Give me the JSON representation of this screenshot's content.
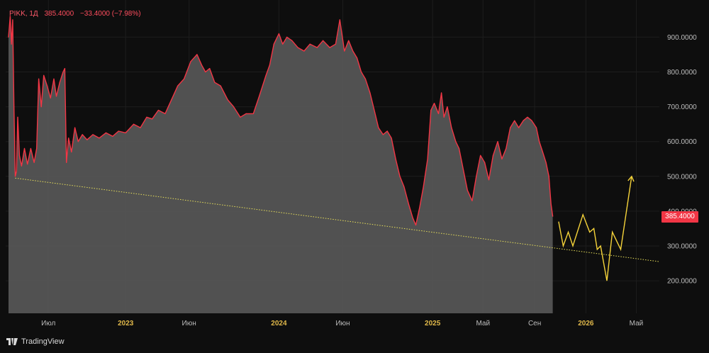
{
  "header": {
    "symbol": "PIKK, 1Д",
    "last": "385.4000",
    "change": "−33.4000 (−7.98%)"
  },
  "price_tag": "385.4000",
  "branding": {
    "name": "TradingView"
  },
  "colors": {
    "background": "#0e0e0e",
    "area_fill": "#555555",
    "line": "#f23645",
    "projection": "#f5d33a",
    "trendline": "#e8e05a",
    "axis_text": "#bdbdbd",
    "axis_text_highlight": "#e0b84a"
  },
  "chart_data": {
    "type": "area",
    "x_axis": {
      "ticks": [
        {
          "label": "Июл",
          "date": "2022-07"
        },
        {
          "label": "2023",
          "date": "2023-01",
          "highlight": true
        },
        {
          "label": "Июн",
          "date": "2023-06"
        },
        {
          "label": "2024",
          "date": "2024-01",
          "highlight": true
        },
        {
          "label": "Июн",
          "date": "2024-06"
        },
        {
          "label": "2025",
          "date": "2025-01",
          "highlight": true
        },
        {
          "label": "Май",
          "date": "2025-05"
        },
        {
          "label": "Сен",
          "date": "2025-09"
        },
        {
          "label": "2026",
          "date": "2026-01",
          "highlight": true
        },
        {
          "label": "Май",
          "date": "2026-05"
        }
      ]
    },
    "y_axis": {
      "range": [
        100,
        1000
      ],
      "ticks": [
        "200.0000",
        "300.0000",
        "400.0000",
        "500.0000",
        "600.0000",
        "700.0000",
        "800.0000",
        "900.0000"
      ],
      "position": "right"
    },
    "series": [
      {
        "points": [
          [
            "2022-03-28",
            900
          ],
          [
            "2022-04-01",
            960
          ],
          [
            "2022-04-04",
            880
          ],
          [
            "2022-04-07",
            950
          ],
          [
            "2022-04-10",
            700
          ],
          [
            "2022-04-13",
            500
          ],
          [
            "2022-04-16",
            515
          ],
          [
            "2022-04-19",
            670
          ],
          [
            "2022-04-23",
            560
          ],
          [
            "2022-04-28",
            530
          ],
          [
            "2022-05-05",
            580
          ],
          [
            "2022-05-12",
            535
          ],
          [
            "2022-05-20",
            580
          ],
          [
            "2022-05-28",
            540
          ],
          [
            "2022-06-03",
            580
          ],
          [
            "2022-06-08",
            780
          ],
          [
            "2022-06-14",
            700
          ],
          [
            "2022-06-20",
            790
          ],
          [
            "2022-06-28",
            760
          ],
          [
            "2022-07-06",
            725
          ],
          [
            "2022-07-14",
            780
          ],
          [
            "2022-07-20",
            730
          ],
          [
            "2022-07-28",
            770
          ],
          [
            "2022-08-05",
            800
          ],
          [
            "2022-08-09",
            810
          ],
          [
            "2022-08-13",
            540
          ],
          [
            "2022-08-18",
            610
          ],
          [
            "2022-08-25",
            570
          ],
          [
            "2022-09-02",
            640
          ],
          [
            "2022-09-10",
            600
          ],
          [
            "2022-09-20",
            620
          ],
          [
            "2022-10-01",
            605
          ],
          [
            "2022-10-15",
            620
          ],
          [
            "2022-10-30",
            610
          ],
          [
            "2022-11-15",
            625
          ],
          [
            "2022-12-01",
            615
          ],
          [
            "2022-12-15",
            630
          ],
          [
            "2023-01-01",
            625
          ],
          [
            "2023-01-20",
            650
          ],
          [
            "2023-02-05",
            640
          ],
          [
            "2023-02-20",
            670
          ],
          [
            "2023-03-05",
            665
          ],
          [
            "2023-03-20",
            690
          ],
          [
            "2023-04-05",
            680
          ],
          [
            "2023-04-20",
            720
          ],
          [
            "2023-05-05",
            760
          ],
          [
            "2023-05-20",
            780
          ],
          [
            "2023-06-05",
            830
          ],
          [
            "2023-06-20",
            850
          ],
          [
            "2023-07-01",
            820
          ],
          [
            "2023-07-10",
            800
          ],
          [
            "2023-07-20",
            810
          ],
          [
            "2023-08-01",
            770
          ],
          [
            "2023-08-15",
            760
          ],
          [
            "2023-09-01",
            720
          ],
          [
            "2023-09-15",
            700
          ],
          [
            "2023-10-01",
            670
          ],
          [
            "2023-10-15",
            680
          ],
          [
            "2023-11-01",
            680
          ],
          [
            "2023-11-15",
            730
          ],
          [
            "2023-12-01",
            790
          ],
          [
            "2023-12-10",
            820
          ],
          [
            "2023-12-20",
            880
          ],
          [
            "2024-01-01",
            910
          ],
          [
            "2024-01-10",
            880
          ],
          [
            "2024-01-20",
            900
          ],
          [
            "2024-02-01",
            890
          ],
          [
            "2024-02-15",
            870
          ],
          [
            "2024-03-01",
            860
          ],
          [
            "2024-03-15",
            880
          ],
          [
            "2024-04-01",
            870
          ],
          [
            "2024-04-15",
            890
          ],
          [
            "2024-05-01",
            870
          ],
          [
            "2024-05-15",
            880
          ],
          [
            "2024-05-25",
            950
          ],
          [
            "2024-06-05",
            860
          ],
          [
            "2024-06-15",
            890
          ],
          [
            "2024-06-25",
            860
          ],
          [
            "2024-07-05",
            840
          ],
          [
            "2024-07-15",
            800
          ],
          [
            "2024-07-25",
            780
          ],
          [
            "2024-08-05",
            740
          ],
          [
            "2024-08-15",
            690
          ],
          [
            "2024-08-25",
            640
          ],
          [
            "2024-09-05",
            620
          ],
          [
            "2024-09-15",
            630
          ],
          [
            "2024-09-25",
            610
          ],
          [
            "2024-10-05",
            550
          ],
          [
            "2024-10-15",
            500
          ],
          [
            "2024-10-25",
            470
          ],
          [
            "2024-11-05",
            420
          ],
          [
            "2024-11-15",
            380
          ],
          [
            "2024-11-22",
            360
          ],
          [
            "2024-12-01",
            410
          ],
          [
            "2024-12-10",
            470
          ],
          [
            "2024-12-20",
            550
          ],
          [
            "2024-12-28",
            690
          ],
          [
            "2025-01-05",
            710
          ],
          [
            "2025-01-15",
            680
          ],
          [
            "2025-01-22",
            740
          ],
          [
            "2025-01-28",
            670
          ],
          [
            "2025-02-05",
            700
          ],
          [
            "2025-02-15",
            640
          ],
          [
            "2025-02-25",
            600
          ],
          [
            "2025-03-05",
            580
          ],
          [
            "2025-03-15",
            520
          ],
          [
            "2025-03-25",
            460
          ],
          [
            "2025-04-05",
            430
          ],
          [
            "2025-04-15",
            500
          ],
          [
            "2025-04-25",
            560
          ],
          [
            "2025-05-05",
            540
          ],
          [
            "2025-05-15",
            490
          ],
          [
            "2025-05-25",
            560
          ],
          [
            "2025-06-05",
            600
          ],
          [
            "2025-06-15",
            550
          ],
          [
            "2025-06-25",
            580
          ],
          [
            "2025-07-05",
            640
          ],
          [
            "2025-07-15",
            660
          ],
          [
            "2025-07-25",
            640
          ],
          [
            "2025-08-05",
            660
          ],
          [
            "2025-08-15",
            670
          ],
          [
            "2025-08-25",
            660
          ],
          [
            "2025-09-05",
            640
          ],
          [
            "2025-09-12",
            600
          ],
          [
            "2025-09-20",
            570
          ],
          [
            "2025-09-28",
            540
          ],
          [
            "2025-10-05",
            500
          ],
          [
            "2025-10-10",
            420
          ],
          [
            "2025-10-14",
            385.4
          ]
        ]
      }
    ],
    "projection": {
      "points": [
        [
          "2025-10-28",
          370
        ],
        [
          "2025-11-08",
          300
        ],
        [
          "2025-11-20",
          340
        ],
        [
          "2025-12-01",
          300
        ],
        [
          "2025-12-25",
          390
        ],
        [
          "2026-01-10",
          340
        ],
        [
          "2026-01-20",
          350
        ],
        [
          "2026-01-28",
          290
        ],
        [
          "2026-02-05",
          300
        ],
        [
          "2026-02-20",
          200
        ],
        [
          "2026-03-05",
          340
        ],
        [
          "2026-03-25",
          290
        ],
        [
          "2026-04-20",
          500
        ]
      ]
    },
    "trendline": {
      "start": [
        "2022-04-13",
        495
      ],
      "end": [
        "2026-06-25",
        255
      ]
    }
  }
}
